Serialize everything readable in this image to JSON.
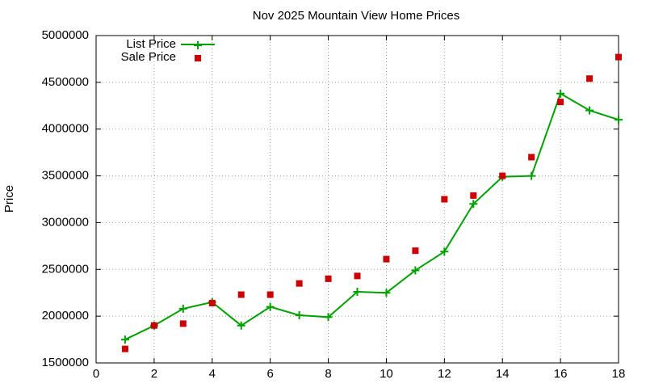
{
  "chart_data": {
    "type": "line",
    "title": "Nov 2025 Mountain View Home Prices",
    "y_label": "Price",
    "x": [
      1,
      2,
      3,
      4,
      5,
      6,
      7,
      8,
      9,
      10,
      11,
      12,
      13,
      14,
      15,
      16,
      17,
      18
    ],
    "series": [
      {
        "name": "List Price",
        "color": "#00a000",
        "style": "linespoints",
        "marker": "plus",
        "values": [
          1750000,
          1900000,
          2080000,
          2150000,
          1900000,
          2100000,
          2010000,
          1990000,
          2260000,
          2250000,
          2490000,
          2690000,
          3200000,
          3490000,
          3500000,
          4380000,
          4200000,
          4100000
        ]
      },
      {
        "name": "Sale Price",
        "color": "#cc0000",
        "style": "points",
        "marker": "square",
        "values": [
          1650000,
          1900000,
          1920000,
          2140000,
          2230000,
          2230000,
          2350000,
          2400000,
          2430000,
          2610000,
          2700000,
          3250000,
          3290000,
          3500000,
          3700000,
          4290000,
          4540000,
          4770000
        ]
      }
    ],
    "xlim": [
      0,
      18
    ],
    "xticks": [
      0,
      2,
      4,
      6,
      8,
      10,
      12,
      14,
      16,
      18
    ],
    "ylim": [
      1500000,
      5000000
    ],
    "yticks": [
      1500000,
      2000000,
      2500000,
      3000000,
      3500000,
      4000000,
      4500000,
      5000000
    ],
    "grid": true,
    "legend": "top-left"
  }
}
